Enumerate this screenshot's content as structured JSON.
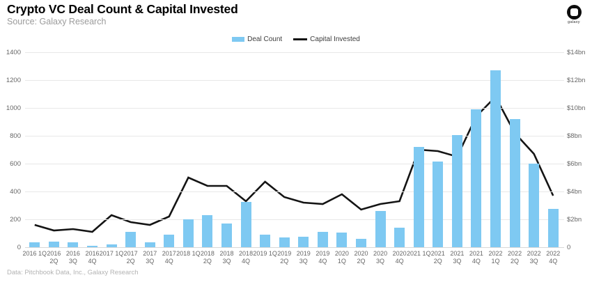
{
  "header": {
    "title": "Crypto VC Deal Count & Capital Invested",
    "subtitle": "Source: Galaxy Research",
    "logo_word": "galaxy"
  },
  "legend": {
    "deal_count_label": "Deal Count",
    "capital_invested_label": "Capital Invested"
  },
  "footer": {
    "credit": "Data: Pitchbook Data, Inc., Galaxy Research"
  },
  "colors": {
    "bar": "#7ec9f2",
    "line": "#141414",
    "gridline": "#e8e8e8",
    "axis_text": "#666666"
  },
  "chart_data": {
    "type": "combo",
    "title": "Crypto VC Deal Count & Capital Invested",
    "categories": [
      "2016 1Q",
      "2016 2Q",
      "2016 3Q",
      "2016 4Q",
      "2017 1Q",
      "2017 2Q",
      "2017 3Q",
      "2017 4Q",
      "2018 1Q",
      "2018 2Q",
      "2018 3Q",
      "2018 4Q",
      "2019 1Q",
      "2019 2Q",
      "2019 3Q",
      "2019 4Q",
      "2020 1Q",
      "2020 2Q",
      "2020 3Q",
      "2020 4Q",
      "2021 1Q",
      "2021 2Q",
      "2021 3Q",
      "2021 4Q",
      "2022 1Q",
      "2022 2Q",
      "2022 3Q",
      "2022 4Q"
    ],
    "tick_label_lines": [
      [
        "2016 1Q"
      ],
      [
        "2016",
        "2Q"
      ],
      [
        "2016",
        "3Q"
      ],
      [
        "2016",
        "4Q"
      ],
      [
        "2017 1Q"
      ],
      [
        "2017",
        "2Q"
      ],
      [
        "2017",
        "3Q"
      ],
      [
        "2017",
        "4Q"
      ],
      [
        "2018 1Q"
      ],
      [
        "2018",
        "2Q"
      ],
      [
        "2018",
        "3Q"
      ],
      [
        "2018",
        "4Q"
      ],
      [
        "2019 1Q"
      ],
      [
        "2019",
        "2Q"
      ],
      [
        "2019",
        "3Q"
      ],
      [
        "2019",
        "4Q"
      ],
      [
        "2020",
        "1Q"
      ],
      [
        "2020",
        "2Q"
      ],
      [
        "2020",
        "3Q"
      ],
      [
        "2020",
        "4Q"
      ],
      [
        "2021 1Q"
      ],
      [
        "2021",
        "2Q"
      ],
      [
        "2021",
        "3Q"
      ],
      [
        "2021",
        "4Q"
      ],
      [
        "2022",
        "1Q"
      ],
      [
        "2022",
        "2Q"
      ],
      [
        "2022",
        "3Q"
      ],
      [
        "2022",
        "4Q"
      ]
    ],
    "series": [
      {
        "name": "Deal Count",
        "type": "bar",
        "axis": "left",
        "values": [
          35,
          38,
          35,
          10,
          22,
          112,
          35,
          90,
          200,
          228,
          170,
          325,
          90,
          70,
          75,
          112,
          103,
          60,
          260,
          140,
          720,
          615,
          805,
          990,
          1270,
          920,
          600,
          275
        ]
      },
      {
        "name": "Capital Invested",
        "type": "line",
        "axis": "right",
        "unit": "$bn",
        "values": [
          1.6,
          1.2,
          1.3,
          1.1,
          2.3,
          1.8,
          1.6,
          2.2,
          5.0,
          4.4,
          4.4,
          3.3,
          4.7,
          3.6,
          3.2,
          3.1,
          3.8,
          2.7,
          3.1,
          3.3,
          7.0,
          6.9,
          6.5,
          9.4,
          10.8,
          8.2,
          6.7,
          3.7
        ]
      }
    ],
    "axes": {
      "left": {
        "ticks": [
          "0",
          "200",
          "400",
          "600",
          "800",
          "1000",
          "1200",
          "1400"
        ],
        "lim": [
          0,
          1400
        ]
      },
      "right": {
        "ticks": [
          "0",
          "$2bn",
          "$4bn",
          "$6bn",
          "$8bn",
          "$10bn",
          "$12bn",
          "$14bn"
        ],
        "lim": [
          0,
          14
        ]
      }
    },
    "grid": true,
    "legend_position": "top-center"
  }
}
